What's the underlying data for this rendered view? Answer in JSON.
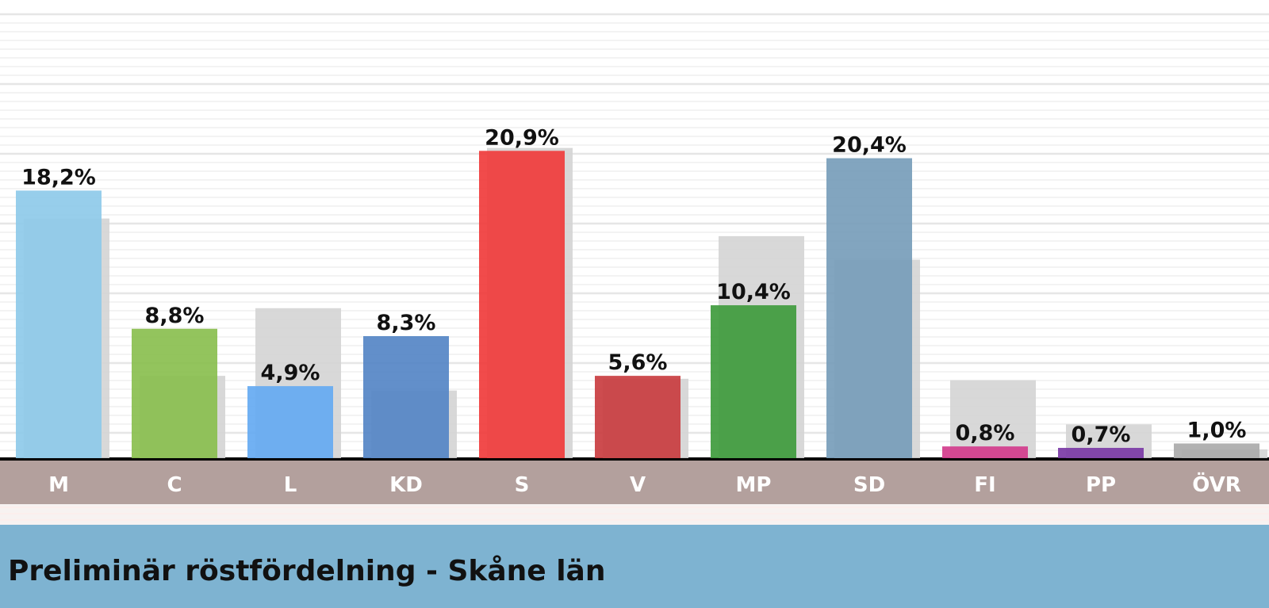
{
  "chart_data": {
    "type": "bar",
    "title": "Preliminär röstfördelning - Skåne län",
    "categories": [
      "M",
      "C",
      "L",
      "KD",
      "S",
      "V",
      "MP",
      "SD",
      "FI",
      "PP",
      "ÖVR"
    ],
    "series": [
      {
        "values": [
          18.2,
          8.8,
          4.9,
          8.3,
          20.9,
          5.6,
          10.4,
          20.4,
          0.8,
          0.7,
          1.0
        ],
        "labels": [
          "18,2%",
          "8,8%",
          "4,9%",
          "8,3%",
          "20,9%",
          "5,6%",
          "10,4%",
          "20,4%",
          "0,8%",
          "0,7%",
          "1,0%"
        ]
      },
      {
        "values": [
          16.3,
          5.6,
          10.2,
          4.6,
          21.1,
          5.4,
          15.1,
          13.5,
          5.3,
          2.3,
          0.6
        ]
      }
    ],
    "colors": [
      "#8ecae9",
      "#8abf4f",
      "#65aaf2",
      "#5585c5",
      "#f03c3c",
      "#c93d40",
      "#3f9b3d",
      "#779dba",
      "#d33c8c",
      "#7b3aa6",
      "#aaaaaa"
    ],
    "comparison_color": "#d4d4d4",
    "ylim": [
      0,
      30
    ],
    "grid": true,
    "axis_bar_color": "#b3a09d"
  }
}
